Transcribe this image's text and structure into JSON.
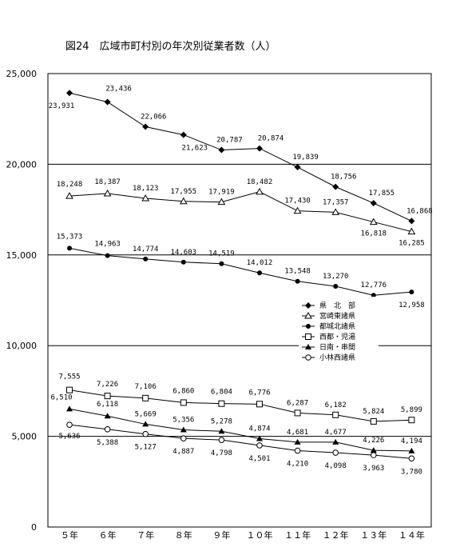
{
  "chart_data": {
    "type": "line",
    "title": "図24　広域市町村別の年次別従業者数（人）",
    "xlabel": "",
    "ylabel": "",
    "categories": [
      "５年",
      "６年",
      "７年",
      "８年",
      "９年",
      "１０年",
      "１１年",
      "１２年",
      "１３年",
      "１４年"
    ],
    "ylim": [
      0,
      25000
    ],
    "yticks": [
      {
        "value": 0,
        "label": "0"
      },
      {
        "value": 5000,
        "label": "5,000"
      },
      {
        "value": 10000,
        "label": "10,000"
      },
      {
        "value": 15000,
        "label": "15,000"
      },
      {
        "value": 20000,
        "label": "20,000"
      },
      {
        "value": 25000,
        "label": "25,000"
      }
    ],
    "grid": "horizontal",
    "legend_position": "right",
    "series": [
      {
        "name": "県　北　部",
        "marker": "filled-diamond",
        "values": [
          23931,
          23436,
          22066,
          21623,
          20787,
          20874,
          19839,
          18756,
          17855,
          16868
        ],
        "labels": [
          "23,931",
          "23,436",
          "22,066",
          "21,623",
          "20,787",
          "20,874",
          "19,839",
          "18,756",
          "17,855",
          "16,868"
        ]
      },
      {
        "name": "宮崎東諸県",
        "marker": "open-triangle",
        "values": [
          18248,
          18387,
          18123,
          17955,
          17919,
          18482,
          17430,
          17357,
          16818,
          16285
        ],
        "labels": [
          "18,248",
          "18,387",
          "18,123",
          "17,955",
          "17,919",
          "18,482",
          "17,430",
          "17,357",
          "16,818",
          "16,285"
        ]
      },
      {
        "name": "都城北諸県",
        "marker": "filled-circle",
        "values": [
          15373,
          14963,
          14774,
          14603,
          14519,
          14012,
          13548,
          13270,
          12776,
          12958
        ],
        "labels": [
          "15,373",
          "14,963",
          "14,774",
          "14,603",
          "14,519",
          "14,012",
          "13,548",
          "13,270",
          "12,776",
          "12,958"
        ]
      },
      {
        "name": "西都・児湯",
        "marker": "open-square",
        "values": [
          7555,
          7226,
          7106,
          6860,
          6804,
          6776,
          6287,
          6182,
          5824,
          5899
        ],
        "labels": [
          "7,555",
          "7,226",
          "7,106",
          "6,860",
          "6,804",
          "6,776",
          "6,287",
          "6,182",
          "5,824",
          "5,899"
        ]
      },
      {
        "name": "日南・串間",
        "marker": "filled-triangle",
        "values": [
          6510,
          6118,
          5669,
          5356,
          5278,
          4874,
          4681,
          4677,
          4226,
          4194
        ],
        "labels": [
          "6,510",
          "6,118",
          "5,669",
          "5,356",
          "5,278",
          "4,874",
          "4,681",
          "4,677",
          "4,226",
          "4,194"
        ]
      },
      {
        "name": "小林西諸県",
        "marker": "open-circle",
        "values": [
          5636,
          5388,
          5127,
          4887,
          4798,
          4501,
          4210,
          4098,
          3963,
          3780
        ],
        "labels": [
          "5,636",
          "5,388",
          "5,127",
          "4,887",
          "4,798",
          "4,501",
          "4,210",
          "4,098",
          "3,963",
          "3,780"
        ]
      }
    ]
  }
}
